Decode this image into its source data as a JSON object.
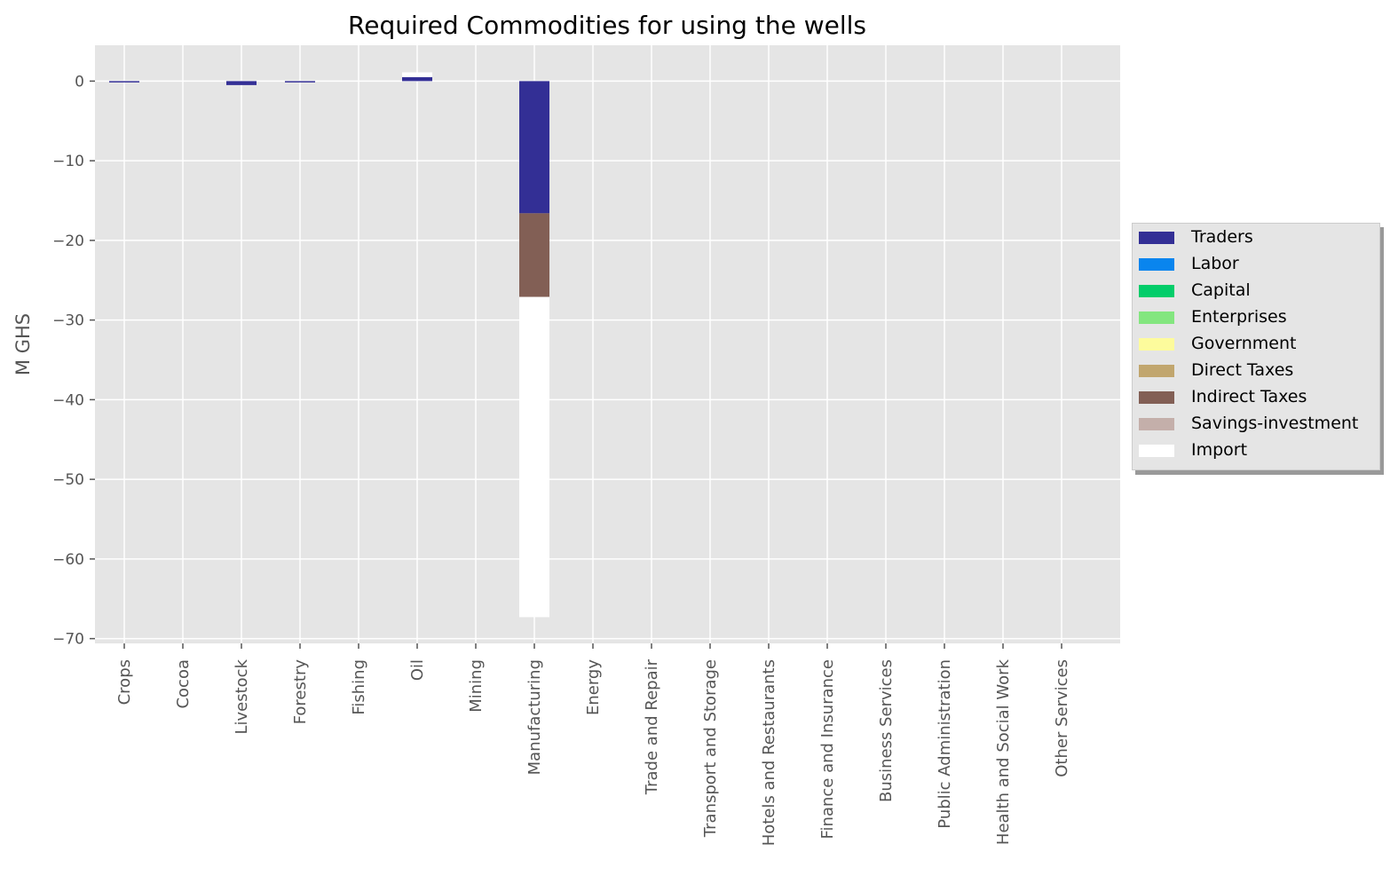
{
  "chart_data": {
    "type": "bar",
    "stacked": true,
    "title": "Required Commodities for using the wells",
    "xlabel": "",
    "ylabel": "M GHS",
    "ylim": [
      -70.6,
      4.5
    ],
    "yticks": [
      0,
      -10,
      -20,
      -30,
      -40,
      -50,
      -60,
      -70
    ],
    "ytick_labels": [
      "0",
      "−10",
      "−20",
      "−30",
      "−40",
      "−50",
      "−60",
      "−70"
    ],
    "grid": true,
    "legend_position": "center-right outside",
    "categories": [
      "Crops",
      "Cocoa",
      "Livestock",
      "Forestry",
      "Fishing",
      "Oil",
      "Mining",
      "Manufacturing",
      "Energy",
      "Trade and Repair",
      "Transport and Storage",
      "Hotels and Restaurants",
      "Finance and Insurance",
      "Business Services",
      "Public Administration",
      "Health and Social Work",
      "Other Services"
    ],
    "series": [
      {
        "name": "Traders",
        "color": "#332f95",
        "values": [
          -0.15,
          0,
          -0.5,
          -0.1,
          0,
          0.5,
          0,
          -16.6,
          0,
          0,
          0,
          0,
          0,
          0,
          0,
          0,
          0
        ]
      },
      {
        "name": "Labor",
        "color": "#0985ee",
        "values": [
          0,
          0,
          0,
          0,
          0,
          0,
          0,
          0,
          0,
          0,
          0,
          0,
          0,
          0,
          0,
          0,
          0
        ]
      },
      {
        "name": "Capital",
        "color": "#03cd6a",
        "values": [
          0,
          0,
          0,
          0,
          0,
          0,
          0,
          0,
          0,
          0,
          0,
          0,
          0,
          0,
          0,
          0,
          0
        ]
      },
      {
        "name": "Enterprises",
        "color": "#83e67f",
        "values": [
          0,
          0,
          0,
          0,
          0,
          0,
          0,
          0,
          0,
          0,
          0,
          0,
          0,
          0,
          0,
          0,
          0
        ]
      },
      {
        "name": "Government",
        "color": "#fdfb9c",
        "values": [
          0,
          0,
          0,
          0,
          0,
          0,
          0,
          0,
          0,
          0,
          0,
          0,
          0,
          0,
          0,
          0,
          0
        ]
      },
      {
        "name": "Direct Taxes",
        "color": "#c1a66e",
        "values": [
          0,
          0,
          0,
          0,
          0,
          0,
          0,
          0,
          0,
          0,
          0,
          0,
          0,
          0,
          0,
          0,
          0
        ]
      },
      {
        "name": "Indirect Taxes",
        "color": "#825f55",
        "values": [
          0,
          0,
          0,
          0,
          0,
          0,
          0,
          -10.5,
          0,
          0,
          0,
          0,
          0,
          0,
          0,
          0,
          0
        ]
      },
      {
        "name": "Savings-investment",
        "color": "#c4afaa",
        "values": [
          0,
          0,
          0,
          0,
          0,
          0,
          0,
          0,
          0,
          0,
          0,
          0,
          0,
          0,
          0,
          0,
          0
        ]
      },
      {
        "name": "Import",
        "color": "#ffffff",
        "values": [
          0,
          0,
          0,
          0,
          0,
          0.6,
          0,
          -40.2,
          0,
          0,
          0,
          0,
          0,
          0,
          0,
          0,
          0
        ]
      }
    ],
    "colors": {
      "background": "#e5e5e5",
      "grid": "#ffffff",
      "tick_text": "#555555"
    }
  }
}
